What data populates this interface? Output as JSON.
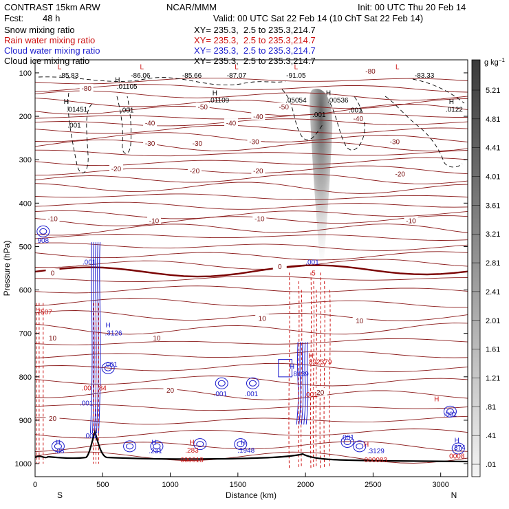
{
  "header": {
    "model": "CONTRAST 15km ARW",
    "forecast_label": "Fcst:",
    "forecast_value": "48 h",
    "center": "NCAR/MMM",
    "init": "Init: 00 UTC Thu 20 Feb 14",
    "valid": "Valid: 00 UTC Sat 22 Feb 14 (10 ChT Sat 22 Feb 14)"
  },
  "legend": [
    {
      "name": "Snow mixing ratio",
      "xy": "XY= 235.3,  2.5 to 235.3,214.7",
      "color": "#000000"
    },
    {
      "name": "Rain water mixing ratio",
      "xy": "XY= 235.3,  2.5 to 235.3,214.7",
      "color": "#cc1111"
    },
    {
      "name": "Cloud water mixing ratio",
      "xy": "XY= 235.3,  2.5 to 235.3,214.7",
      "color": "#1a1acc"
    },
    {
      "name": "Cloud ice mixing ratio",
      "xy": "XY= 235.3,  2.5 to 235.3,214.7",
      "color": "#000000"
    }
  ],
  "chart_data": {
    "type": "cross-section",
    "xlabel": "Distance (km)",
    "ylabel": "Pressure (hPa)",
    "x_ticks": [
      0,
      500,
      1000,
      1500,
      2000,
      2500,
      3000
    ],
    "x_tick_labels": [
      "0",
      "500",
      "1000",
      "1500",
      "2000",
      "2500",
      "3000"
    ],
    "x_range": [
      0,
      3200
    ],
    "y_ticks": [
      100,
      200,
      300,
      400,
      500,
      600,
      700,
      800,
      900,
      1000
    ],
    "y_tick_labels": [
      "100",
      "200",
      "300",
      "400",
      "500",
      "600",
      "700",
      "800",
      "900",
      "1000"
    ],
    "y_range": [
      70,
      1030
    ],
    "end_labels": {
      "left": "S",
      "right": "N"
    },
    "colorbar": {
      "unit": "g kg",
      "unit_sup": "−1",
      "labels": [
        "5.21",
        "4.81",
        "4.41",
        "4.01",
        "3.61",
        "3.21",
        "2.81",
        "2.41",
        "2.01",
        "1.61",
        "1.21",
        ".81",
        ".41",
        ".01"
      ]
    },
    "temperature_contours": [
      {
        "label": "-80",
        "x": 380,
        "p": 135
      },
      {
        "label": "-80",
        "x": 2480,
        "p": 95
      },
      {
        "label": "-50",
        "x": 1240,
        "p": 178
      },
      {
        "label": "-50",
        "x": 1840,
        "p": 178
      },
      {
        "label": "-40",
        "x": 850,
        "p": 215
      },
      {
        "label": "-40",
        "x": 1450,
        "p": 215
      },
      {
        "label": "-40",
        "x": 1650,
        "p": 200
      },
      {
        "label": "-40",
        "x": 2390,
        "p": 205
      },
      {
        "label": "-30",
        "x": 850,
        "p": 262
      },
      {
        "label": "-30",
        "x": 1200,
        "p": 262
      },
      {
        "label": "-30",
        "x": 1620,
        "p": 258
      },
      {
        "label": "-30",
        "x": 2660,
        "p": 258
      },
      {
        "label": "-20",
        "x": 600,
        "p": 320
      },
      {
        "label": "-20",
        "x": 1180,
        "p": 325
      },
      {
        "label": "-20",
        "x": 1650,
        "p": 325
      },
      {
        "label": "-20",
        "x": 2700,
        "p": 332
      },
      {
        "label": "-10",
        "x": 130,
        "p": 435
      },
      {
        "label": "-10",
        "x": 880,
        "p": 440
      },
      {
        "label": "-10",
        "x": 1660,
        "p": 435
      },
      {
        "label": "-10",
        "x": 2780,
        "p": 440
      },
      {
        "label": "0",
        "x": 130,
        "p": 560
      },
      {
        "label": "0",
        "x": 1810,
        "p": 545
      },
      {
        "label": "10",
        "x": 130,
        "p": 710
      },
      {
        "label": "10",
        "x": 900,
        "p": 710
      },
      {
        "label": "10",
        "x": 1680,
        "p": 665
      },
      {
        "label": "10",
        "x": 2400,
        "p": 670
      },
      {
        "label": "20",
        "x": 1000,
        "p": 830
      },
      {
        "label": "20",
        "x": 130,
        "p": 895
      },
      {
        "label": "20",
        "x": 2110,
        "p": 835
      }
    ],
    "extrema_labels": [
      {
        "text": "L",
        "x": 180,
        "p": 85,
        "color": "#cc1111"
      },
      {
        "text": "-85.83",
        "x": 250,
        "p": 105,
        "color": "#000000"
      },
      {
        "text": "L",
        "x": 790,
        "p": 85,
        "color": "#cc1111"
      },
      {
        "text": "-86.06",
        "x": 780,
        "p": 105,
        "color": "#000000"
      },
      {
        "text": "-85.66",
        "x": 1160,
        "p": 105,
        "color": "#000000"
      },
      {
        "text": "L",
        "x": 1490,
        "p": 85,
        "color": "#cc1111"
      },
      {
        "text": "-87.07",
        "x": 1490,
        "p": 105,
        "color": "#000000"
      },
      {
        "text": "L",
        "x": 1930,
        "p": 85,
        "color": "#cc1111"
      },
      {
        "text": "-91.05",
        "x": 1930,
        "p": 105,
        "color": "#000000"
      },
      {
        "text": "L",
        "x": 2680,
        "p": 85,
        "color": "#cc1111"
      },
      {
        "text": "-83.33",
        "x": 2880,
        "p": 105,
        "color": "#000000"
      },
      {
        "text": "H",
        "x": 610,
        "p": 115,
        "color": "#000000"
      },
      {
        "text": ".01105",
        "x": 680,
        "p": 130,
        "color": "#000000"
      },
      {
        "text": "H",
        "x": 1330,
        "p": 145,
        "color": "#000000"
      },
      {
        "text": ".01109",
        "x": 1360,
        "p": 162,
        "color": "#000000"
      },
      {
        "text": ".05054",
        "x": 1930,
        "p": 162,
        "color": "#000000"
      },
      {
        "text": "H",
        "x": 2170,
        "p": 145,
        "color": "#000000"
      },
      {
        "text": ".00536",
        "x": 2240,
        "p": 162,
        "color": "#000000"
      },
      {
        "text": "H",
        "x": 230,
        "p": 165,
        "color": "#000000"
      },
      {
        "text": ".01451",
        "x": 310,
        "p": 183,
        "color": "#000000"
      },
      {
        "text": ".001",
        "x": 290,
        "p": 220,
        "color": "#000000"
      },
      {
        "text": ".001",
        "x": 680,
        "p": 185,
        "color": "#000000"
      },
      {
        "text": ".001",
        "x": 2100,
        "p": 195,
        "color": "#000000"
      },
      {
        "text": ".001",
        "x": 2370,
        "p": 185,
        "color": "#000000"
      },
      {
        "text": "H",
        "x": 3080,
        "p": 165,
        "color": "#000000"
      },
      {
        "text": ".0122",
        "x": 3100,
        "p": 183,
        "color": "#000000"
      },
      {
        "text": "908",
        "x": 60,
        "p": 485,
        "color": "#1a1acc"
      },
      {
        "text": ".001",
        "x": 400,
        "p": 535,
        "color": "#1a1acc"
      },
      {
        "text": ".001",
        "x": 2050,
        "p": 535,
        "color": "#1a1acc"
      },
      {
        "text": "7507",
        "x": 70,
        "p": 650,
        "color": "#cc1111"
      },
      {
        "text": "H",
        "x": 540,
        "p": 680,
        "color": "#1a1acc"
      },
      {
        "text": ".3126",
        "x": 580,
        "p": 698,
        "color": "#1a1acc"
      },
      {
        "text": ".001",
        "x": 560,
        "p": 770,
        "color": "#1a1acc"
      },
      {
        "text": "H",
        "x": 2040,
        "p": 750,
        "color": "#cc1111"
      },
      {
        "text": "892379",
        "x": 2110,
        "p": 765,
        "color": "#cc1111"
      },
      {
        "text": "H",
        "x": 1900,
        "p": 775,
        "color": "#1a1acc"
      },
      {
        "text": ".8139",
        "x": 1960,
        "p": 792,
        "color": "#1a1acc"
      },
      {
        "text": ".001",
        "x": 2040,
        "p": 840,
        "color": "#cc1111"
      },
      {
        "text": ".001",
        "x": 1370,
        "p": 838,
        "color": "#1a1acc"
      },
      {
        "text": ".001",
        "x": 1600,
        "p": 838,
        "color": "#1a1acc"
      },
      {
        "text": ".00",
        "x": 380,
        "p": 825,
        "color": "#cc1111"
      },
      {
        "text": "84",
        "x": 500,
        "p": 825,
        "color": "#cc1111"
      },
      {
        "text": ".001",
        "x": 380,
        "p": 860,
        "color": "#1a1acc"
      },
      {
        "text": ".001",
        "x": 410,
        "p": 935,
        "color": "#1a1acc"
      },
      {
        "text": "H",
        "x": 170,
        "p": 950,
        "color": "#1a1acc"
      },
      {
        "text": ".08",
        "x": 180,
        "p": 970,
        "color": "#1a1acc"
      },
      {
        "text": "H",
        "x": 880,
        "p": 950,
        "color": "#1a1acc"
      },
      {
        "text": ".231",
        "x": 890,
        "p": 970,
        "color": "#1a1acc"
      },
      {
        "text": "H",
        "x": 1160,
        "p": 950,
        "color": "#cc1111"
      },
      {
        "text": ".283",
        "x": 1160,
        "p": 968,
        "color": "#cc1111"
      },
      {
        "text": "000018",
        "x": 1160,
        "p": 990,
        "color": "#cc1111"
      },
      {
        "text": "H",
        "x": 1540,
        "p": 950,
        "color": "#1a1acc"
      },
      {
        "text": ".1948",
        "x": 1560,
        "p": 968,
        "color": "#1a1acc"
      },
      {
        "text": ".001",
        "x": 2310,
        "p": 938,
        "color": "#1a1acc"
      },
      {
        "text": "H",
        "x": 2450,
        "p": 955,
        "color": "#cc1111"
      },
      {
        "text": ".3129",
        "x": 2520,
        "p": 970,
        "color": "#1a1acc"
      },
      {
        "text": "000083",
        "x": 2520,
        "p": 990,
        "color": "#cc1111"
      },
      {
        "text": ".001",
        "x": 3070,
        "p": 885,
        "color": "#1a1acc"
      },
      {
        "text": "H",
        "x": 2970,
        "p": 850,
        "color": "#cc1111"
      },
      {
        "text": "H",
        "x": 3120,
        "p": 945,
        "color": "#1a1acc"
      },
      {
        "text": "374",
        "x": 3140,
        "p": 962,
        "color": "#1a1acc"
      },
      {
        "text": "0008",
        "x": 3120,
        "p": 982,
        "color": "#cc1111"
      },
      {
        "text": "5",
        "x": 2060,
        "p": 560,
        "color": "#cc1111"
      }
    ]
  }
}
